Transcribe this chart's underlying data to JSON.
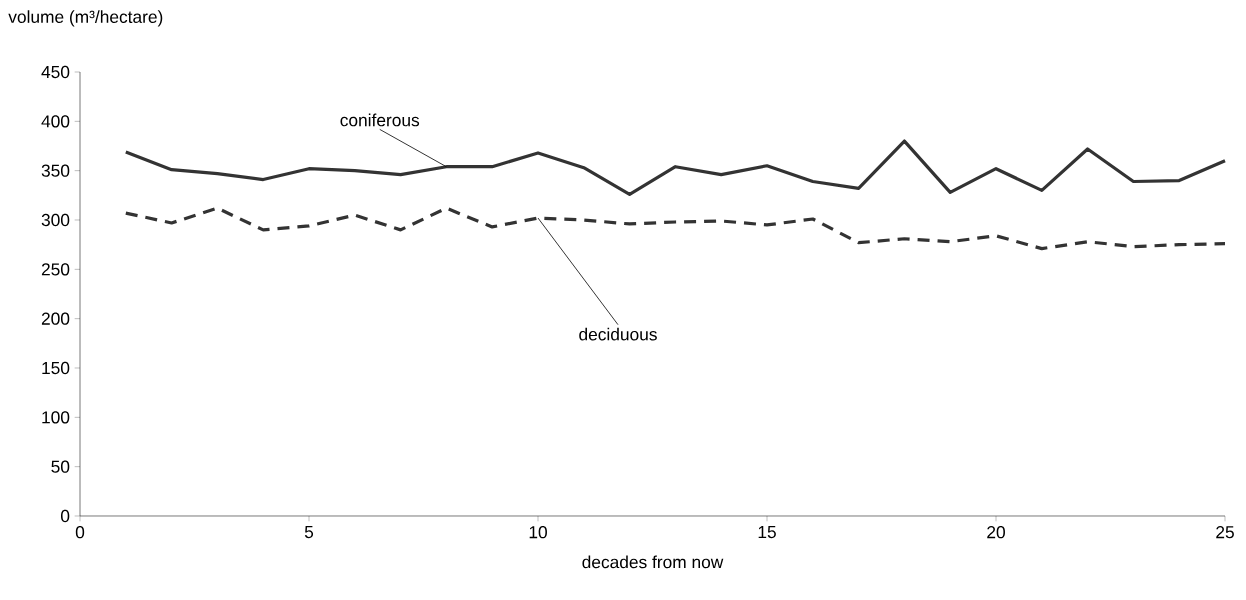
{
  "chart_data": {
    "type": "line",
    "xlabel": "decades from now",
    "ylabel": "volume (m³/hectare)",
    "x": [
      1,
      2,
      3,
      4,
      5,
      6,
      7,
      8,
      9,
      10,
      11,
      12,
      13,
      14,
      15,
      16,
      17,
      18,
      19,
      20,
      21,
      22,
      23,
      24,
      25
    ],
    "series": [
      {
        "name": "coniferous",
        "color": "#333333",
        "line_style": "solid",
        "values": [
          369,
          351,
          347,
          341,
          352,
          350,
          346,
          354,
          354,
          368,
          353,
          326,
          354,
          346,
          355,
          339,
          332,
          380,
          328,
          352,
          330,
          372,
          339,
          340,
          360
        ]
      },
      {
        "name": "deciduous",
        "color": "#333333",
        "line_style": "dashed",
        "values": [
          307,
          297,
          312,
          290,
          294,
          305,
          290,
          312,
          293,
          302,
          300,
          296,
          298,
          299,
          295,
          301,
          277,
          281,
          278,
          284,
          271,
          278,
          273,
          275,
          276
        ]
      }
    ],
    "xlim": [
      0,
      25
    ],
    "ylim": [
      0,
      450
    ],
    "xticks": [
      0,
      5,
      10,
      15,
      20,
      25
    ],
    "yticks": [
      0,
      50,
      100,
      150,
      200,
      250,
      300,
      350,
      400,
      450
    ],
    "grid": false,
    "legend": false,
    "marker": "none"
  }
}
